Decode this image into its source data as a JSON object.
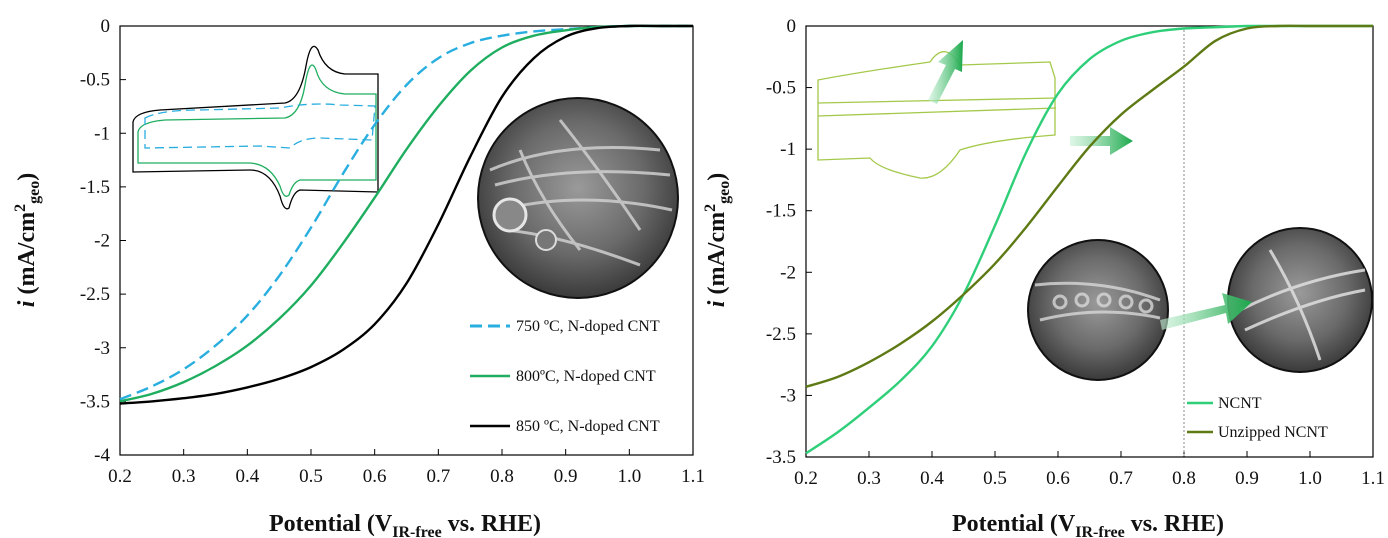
{
  "chart_data": [
    {
      "type": "line",
      "xlabel": "Potential (V",
      "xlabel_sub": "IR-free",
      "xlabel_tail": " vs. RHE)",
      "ylabel": "i",
      "ylabel_unit": " (mA/cm",
      "ylabel_sup": "2",
      "ylabel_sub": "geo",
      "ylabel_tail": ")",
      "xlim": [
        0.2,
        1.1
      ],
      "ylim": [
        -4,
        0
      ],
      "xticks": [
        0.2,
        0.3,
        0.4,
        0.5,
        0.6,
        0.7,
        0.8,
        0.9,
        1.0,
        1.1
      ],
      "xtick_labels": [
        "0.2",
        "0.3",
        "0.4",
        "0.5",
        "0.6",
        "0.7",
        "0.8",
        "0.9",
        "1.0",
        "1.1"
      ],
      "yticks": [
        0,
        -0.5,
        -1,
        -1.5,
        -2,
        -2.5,
        -3,
        -3.5,
        -4
      ],
      "ytick_labels": [
        "0",
        "-0.5",
        "-1",
        "-1.5",
        "-2",
        "-2.5",
        "-3",
        "-3.5",
        "-4"
      ],
      "grid": false,
      "legend_position": "bottom-right",
      "series": [
        {
          "name": "750 ºC, N-doped CNT",
          "color": "#29aee0",
          "dash": "dashed",
          "x": [
            0.2,
            0.25,
            0.3,
            0.35,
            0.4,
            0.45,
            0.5,
            0.55,
            0.6,
            0.65,
            0.7,
            0.75,
            0.8,
            0.85,
            0.9,
            0.95,
            1.0,
            1.05,
            1.1
          ],
          "y": [
            -3.48,
            -3.36,
            -3.2,
            -2.98,
            -2.7,
            -2.33,
            -1.88,
            -1.38,
            -0.92,
            -0.55,
            -0.3,
            -0.16,
            -0.09,
            -0.05,
            -0.03,
            -0.01,
            0,
            0,
            0
          ]
        },
        {
          "name": "800ºC, N-doped CNT",
          "color": "#1fae5f",
          "dash": "solid",
          "x": [
            0.2,
            0.25,
            0.3,
            0.35,
            0.4,
            0.45,
            0.5,
            0.55,
            0.6,
            0.65,
            0.7,
            0.75,
            0.8,
            0.85,
            0.9,
            0.95,
            1.0,
            1.05,
            1.1
          ],
          "y": [
            -3.5,
            -3.43,
            -3.32,
            -3.17,
            -2.98,
            -2.73,
            -2.42,
            -2.03,
            -1.6,
            -1.15,
            -0.75,
            -0.42,
            -0.2,
            -0.09,
            -0.04,
            -0.01,
            0,
            0,
            0
          ]
        },
        {
          "name": "850 ºC, N-doped CNT",
          "color": "#000000",
          "dash": "solid",
          "x": [
            0.2,
            0.25,
            0.3,
            0.35,
            0.4,
            0.45,
            0.5,
            0.55,
            0.6,
            0.65,
            0.7,
            0.75,
            0.8,
            0.85,
            0.9,
            0.95,
            1.0,
            1.05,
            1.1
          ],
          "y": [
            -3.52,
            -3.5,
            -3.47,
            -3.43,
            -3.37,
            -3.29,
            -3.18,
            -3.02,
            -2.78,
            -2.4,
            -1.85,
            -1.22,
            -0.66,
            -0.3,
            -0.1,
            -0.02,
            0,
            0,
            0
          ]
        }
      ]
    },
    {
      "type": "line",
      "xlabel": "Potential (V",
      "xlabel_sub": "IR-free",
      "xlabel_tail": " vs. RHE)",
      "ylabel": "i",
      "ylabel_unit": " (mA/cm",
      "ylabel_sup": "2",
      "ylabel_sub": "geo",
      "ylabel_tail": ")",
      "xlim": [
        0.2,
        1.1
      ],
      "ylim": [
        -3.5,
        0
      ],
      "xticks": [
        0.2,
        0.3,
        0.4,
        0.5,
        0.6,
        0.7,
        0.8,
        0.9,
        1.0,
        1.1
      ],
      "xtick_labels": [
        "0.2",
        "0.3",
        "0.4",
        "0.5",
        "0.6",
        "0.7",
        "0.8",
        "0.9",
        "1.0",
        "1.1"
      ],
      "yticks": [
        0,
        -0.5,
        -1,
        -1.5,
        -2,
        -2.5,
        -3,
        -3.5
      ],
      "ytick_labels": [
        "0",
        "-0.5",
        "-1",
        "-1.5",
        "-2",
        "-2.5",
        "-3",
        "-3.5"
      ],
      "grid": false,
      "legend_position": "bottom-right",
      "reference_line_x": 0.8,
      "series": [
        {
          "name": "NCNT",
          "color": "#2fcf7a",
          "dash": "solid",
          "x": [
            0.2,
            0.25,
            0.3,
            0.35,
            0.4,
            0.45,
            0.5,
            0.55,
            0.6,
            0.65,
            0.7,
            0.75,
            0.8,
            0.85,
            0.9,
            0.95,
            1.0,
            1.05,
            1.1
          ],
          "y": [
            -3.47,
            -3.3,
            -3.1,
            -2.88,
            -2.6,
            -2.18,
            -1.62,
            -1.02,
            -0.55,
            -0.27,
            -0.12,
            -0.05,
            -0.02,
            -0.01,
            0,
            0,
            0,
            0,
            0
          ]
        },
        {
          "name": "Unzipped NCNT",
          "color": "#5e7a14",
          "dash": "solid",
          "x": [
            0.2,
            0.25,
            0.3,
            0.35,
            0.4,
            0.45,
            0.5,
            0.55,
            0.6,
            0.65,
            0.7,
            0.75,
            0.8,
            0.85,
            0.9,
            0.95,
            1.0,
            1.05,
            1.1
          ],
          "y": [
            -2.93,
            -2.85,
            -2.73,
            -2.58,
            -2.4,
            -2.18,
            -1.93,
            -1.63,
            -1.3,
            -0.98,
            -0.72,
            -0.52,
            -0.33,
            -0.12,
            -0.02,
            0,
            0,
            0,
            0
          ]
        }
      ]
    }
  ]
}
